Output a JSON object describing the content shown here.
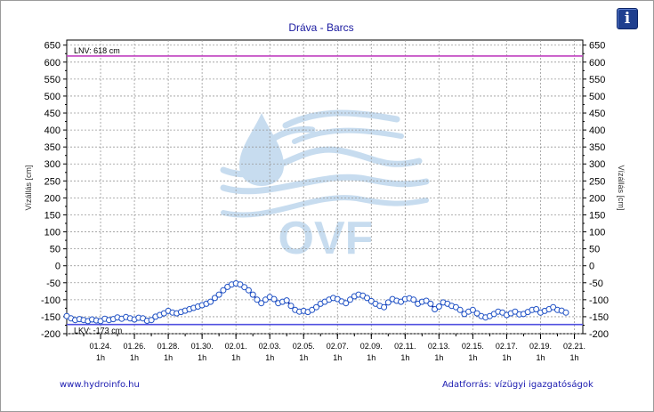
{
  "chart_data": {
    "type": "line",
    "title": "Dráva - Barcs",
    "ylabel": "Vízállás [cm]",
    "ylabel_right": "Vízállás [cm]",
    "ylim": [
      -200,
      650
    ],
    "yticks": [
      650,
      600,
      550,
      500,
      450,
      400,
      350,
      300,
      250,
      200,
      150,
      100,
      50,
      0,
      -50,
      -100,
      -150,
      -200
    ],
    "x_range": [
      "01.22. 1h",
      "02.21. 1h"
    ],
    "xticks": [
      {
        "date": "01.24.",
        "hour": "1h",
        "day": 2
      },
      {
        "date": "01.26.",
        "hour": "1h",
        "day": 4
      },
      {
        "date": "01.28.",
        "hour": "1h",
        "day": 6
      },
      {
        "date": "01.30.",
        "hour": "1h",
        "day": 8
      },
      {
        "date": "02.01.",
        "hour": "1h",
        "day": 10
      },
      {
        "date": "02.03.",
        "hour": "1h",
        "day": 12
      },
      {
        "date": "02.05.",
        "hour": "1h",
        "day": 14
      },
      {
        "date": "02.07.",
        "hour": "1h",
        "day": 16
      },
      {
        "date": "02.09.",
        "hour": "1h",
        "day": 18
      },
      {
        "date": "02.11.",
        "hour": "1h",
        "day": 20
      },
      {
        "date": "02.13.",
        "hour": "1h",
        "day": 22
      },
      {
        "date": "02.15.",
        "hour": "1h",
        "day": 24
      },
      {
        "date": "02.17.",
        "hour": "1h",
        "day": 26
      },
      {
        "date": "02.19.",
        "hour": "1h",
        "day": 28
      },
      {
        "date": "02.21.",
        "hour": "1h",
        "day": 30
      }
    ],
    "grid": true,
    "reference_lines": [
      {
        "label": "LNV: 618 cm",
        "value": 618,
        "color": "#c040c0"
      },
      {
        "label": "LKV: -173 cm",
        "value": -173,
        "color": "#5050e0"
      }
    ],
    "series": [
      {
        "color": "#00008b",
        "marker": "circle",
        "points": [
          [
            0.0,
            -148
          ],
          [
            0.25,
            -155
          ],
          [
            0.5,
            -160
          ],
          [
            0.75,
            -157
          ],
          [
            1.0,
            -160
          ],
          [
            1.25,
            -163
          ],
          [
            1.5,
            -158
          ],
          [
            1.75,
            -161
          ],
          [
            2.0,
            -163
          ],
          [
            2.25,
            -156
          ],
          [
            2.5,
            -160
          ],
          [
            2.75,
            -157
          ],
          [
            3.0,
            -152
          ],
          [
            3.25,
            -156
          ],
          [
            3.5,
            -151
          ],
          [
            3.75,
            -155
          ],
          [
            4.0,
            -158
          ],
          [
            4.25,
            -153
          ],
          [
            4.5,
            -155
          ],
          [
            4.75,
            -162
          ],
          [
            5.0,
            -160
          ],
          [
            5.25,
            -150
          ],
          [
            5.5,
            -145
          ],
          [
            5.75,
            -140
          ],
          [
            6.0,
            -133
          ],
          [
            6.25,
            -138
          ],
          [
            6.5,
            -140
          ],
          [
            6.75,
            -136
          ],
          [
            7.0,
            -132
          ],
          [
            7.25,
            -128
          ],
          [
            7.5,
            -124
          ],
          [
            7.75,
            -120
          ],
          [
            8.0,
            -116
          ],
          [
            8.25,
            -112
          ],
          [
            8.5,
            -106
          ],
          [
            8.75,
            -95
          ],
          [
            9.0,
            -85
          ],
          [
            9.25,
            -72
          ],
          [
            9.5,
            -62
          ],
          [
            9.75,
            -55
          ],
          [
            10.0,
            -52
          ],
          [
            10.25,
            -55
          ],
          [
            10.5,
            -63
          ],
          [
            10.75,
            -72
          ],
          [
            11.0,
            -85
          ],
          [
            11.25,
            -100
          ],
          [
            11.5,
            -110
          ],
          [
            11.75,
            -100
          ],
          [
            12.0,
            -92
          ],
          [
            12.25,
            -98
          ],
          [
            12.5,
            -110
          ],
          [
            12.75,
            -106
          ],
          [
            13.0,
            -102
          ],
          [
            13.25,
            -118
          ],
          [
            13.5,
            -130
          ],
          [
            13.75,
            -135
          ],
          [
            14.0,
            -133
          ],
          [
            14.25,
            -136
          ],
          [
            14.5,
            -130
          ],
          [
            14.75,
            -122
          ],
          [
            15.0,
            -112
          ],
          [
            15.25,
            -106
          ],
          [
            15.5,
            -100
          ],
          [
            15.75,
            -95
          ],
          [
            16.0,
            -98
          ],
          [
            16.25,
            -105
          ],
          [
            16.5,
            -110
          ],
          [
            16.75,
            -100
          ],
          [
            17.0,
            -90
          ],
          [
            17.25,
            -85
          ],
          [
            17.5,
            -88
          ],
          [
            17.75,
            -95
          ],
          [
            18.0,
            -104
          ],
          [
            18.25,
            -112
          ],
          [
            18.5,
            -118
          ],
          [
            18.75,
            -122
          ],
          [
            19.0,
            -108
          ],
          [
            19.25,
            -98
          ],
          [
            19.5,
            -103
          ],
          [
            19.75,
            -106
          ],
          [
            20.0,
            -98
          ],
          [
            20.25,
            -96
          ],
          [
            20.5,
            -100
          ],
          [
            20.75,
            -112
          ],
          [
            21.0,
            -106
          ],
          [
            21.25,
            -103
          ],
          [
            21.5,
            -112
          ],
          [
            21.75,
            -128
          ],
          [
            22.0,
            -120
          ],
          [
            22.25,
            -108
          ],
          [
            22.5,
            -112
          ],
          [
            22.75,
            -118
          ],
          [
            23.0,
            -122
          ],
          [
            23.25,
            -130
          ],
          [
            23.5,
            -142
          ],
          [
            23.75,
            -135
          ],
          [
            24.0,
            -130
          ],
          [
            24.25,
            -140
          ],
          [
            24.5,
            -148
          ],
          [
            24.75,
            -152
          ],
          [
            25.0,
            -148
          ],
          [
            25.25,
            -142
          ],
          [
            25.5,
            -135
          ],
          [
            25.75,
            -138
          ],
          [
            26.0,
            -145
          ],
          [
            26.25,
            -140
          ],
          [
            26.5,
            -135
          ],
          [
            26.75,
            -143
          ],
          [
            27.0,
            -142
          ],
          [
            27.25,
            -136
          ],
          [
            27.5,
            -130
          ],
          [
            27.75,
            -128
          ],
          [
            28.0,
            -138
          ],
          [
            28.25,
            -133
          ],
          [
            28.5,
            -128
          ],
          [
            28.75,
            -122
          ],
          [
            29.0,
            -130
          ],
          [
            29.25,
            -132
          ],
          [
            29.5,
            -138
          ]
        ]
      }
    ]
  },
  "watermark": {
    "text": "OVF"
  },
  "footer": {
    "link": "www.hydroinfo.hu",
    "source": "Adatforrás: vízügyi igazgatóságok"
  },
  "info_button": {
    "label": "i"
  }
}
